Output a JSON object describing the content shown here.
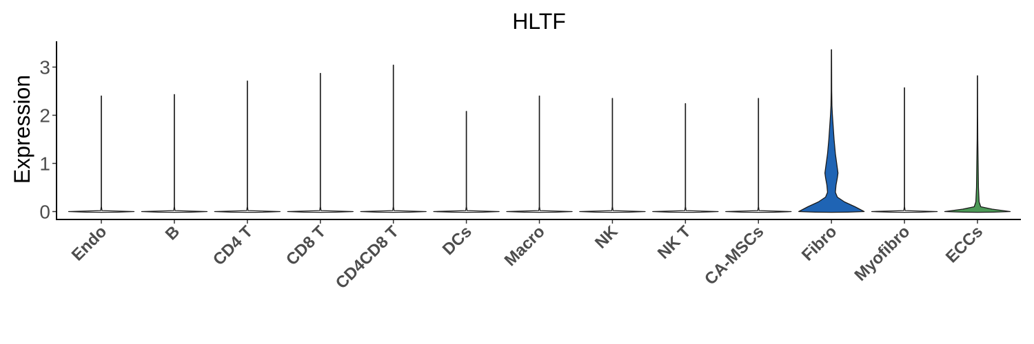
{
  "chart_data": {
    "type": "violin",
    "title": "HLTF",
    "ylabel": "Expression",
    "xlabel": "",
    "ylim": [
      -0.2,
      3.55
    ],
    "yticks": [
      0,
      1,
      2,
      3
    ],
    "grid": false,
    "legend": "none",
    "categories": [
      "Endo",
      "B",
      "CD4 T",
      "CD8 T",
      "CD4CD8 T",
      "DCs",
      "Macro",
      "NK",
      "NK T",
      "CA-MSCs",
      "Fibro",
      "Myofibro",
      "ECCs"
    ],
    "colors": [
      "#ffffff",
      "#ffffff",
      "#ffffff",
      "#ffffff",
      "#ffffff",
      "#ffffff",
      "#ffffff",
      "#ffffff",
      "#ffffff",
      "#ffffff",
      "#1f64b4",
      "#ffffff",
      "#4c9a57"
    ],
    "max_values": [
      2.4,
      2.43,
      2.71,
      2.87,
      3.04,
      2.08,
      2.4,
      2.35,
      2.24,
      2.35,
      3.36,
      2.57,
      2.82
    ],
    "density_profiles": [
      [
        [
          0,
          1.0
        ],
        [
          0.02,
          0.02
        ],
        [
          0.1,
          0.004
        ],
        [
          2.4,
          0.004
        ]
      ],
      [
        [
          0,
          1.0
        ],
        [
          0.02,
          0.02
        ],
        [
          0.1,
          0.004
        ],
        [
          2.43,
          0.004
        ]
      ],
      [
        [
          0,
          1.0
        ],
        [
          0.02,
          0.02
        ],
        [
          0.1,
          0.004
        ],
        [
          2.71,
          0.004
        ]
      ],
      [
        [
          0,
          1.0
        ],
        [
          0.02,
          0.02
        ],
        [
          0.1,
          0.004
        ],
        [
          2.87,
          0.004
        ]
      ],
      [
        [
          0,
          1.0
        ],
        [
          0.02,
          0.02
        ],
        [
          0.1,
          0.004
        ],
        [
          3.04,
          0.004
        ]
      ],
      [
        [
          0,
          1.0
        ],
        [
          0.02,
          0.02
        ],
        [
          0.1,
          0.004
        ],
        [
          2.08,
          0.004
        ]
      ],
      [
        [
          0,
          1.0
        ],
        [
          0.02,
          0.02
        ],
        [
          0.1,
          0.004
        ],
        [
          2.4,
          0.004
        ]
      ],
      [
        [
          0,
          1.0
        ],
        [
          0.02,
          0.02
        ],
        [
          0.1,
          0.004
        ],
        [
          2.35,
          0.004
        ]
      ],
      [
        [
          0,
          1.0
        ],
        [
          0.02,
          0.02
        ],
        [
          0.1,
          0.004
        ],
        [
          2.24,
          0.004
        ]
      ],
      [
        [
          0,
          1.0
        ],
        [
          0.02,
          0.02
        ],
        [
          0.1,
          0.004
        ],
        [
          2.35,
          0.004
        ]
      ],
      [
        [
          0,
          1.0
        ],
        [
          0.1,
          0.72
        ],
        [
          0.2,
          0.4
        ],
        [
          0.3,
          0.18
        ],
        [
          0.4,
          0.12
        ],
        [
          0.55,
          0.14
        ],
        [
          0.7,
          0.18
        ],
        [
          0.8,
          0.2
        ],
        [
          0.9,
          0.18
        ],
        [
          1.0,
          0.16
        ],
        [
          1.2,
          0.12
        ],
        [
          1.5,
          0.08
        ],
        [
          1.8,
          0.05
        ],
        [
          2.0,
          0.03
        ],
        [
          2.2,
          0.015
        ],
        [
          2.5,
          0.008
        ],
        [
          3.36,
          0.004
        ]
      ],
      [
        [
          0,
          1.0
        ],
        [
          0.02,
          0.02
        ],
        [
          0.1,
          0.004
        ],
        [
          2.57,
          0.004
        ]
      ],
      [
        [
          0,
          1.0
        ],
        [
          0.05,
          0.45
        ],
        [
          0.1,
          0.1
        ],
        [
          0.2,
          0.05
        ],
        [
          0.5,
          0.03
        ],
        [
          1.0,
          0.02
        ],
        [
          1.5,
          0.01
        ],
        [
          2.0,
          0.006
        ],
        [
          2.82,
          0.004
        ]
      ]
    ]
  }
}
